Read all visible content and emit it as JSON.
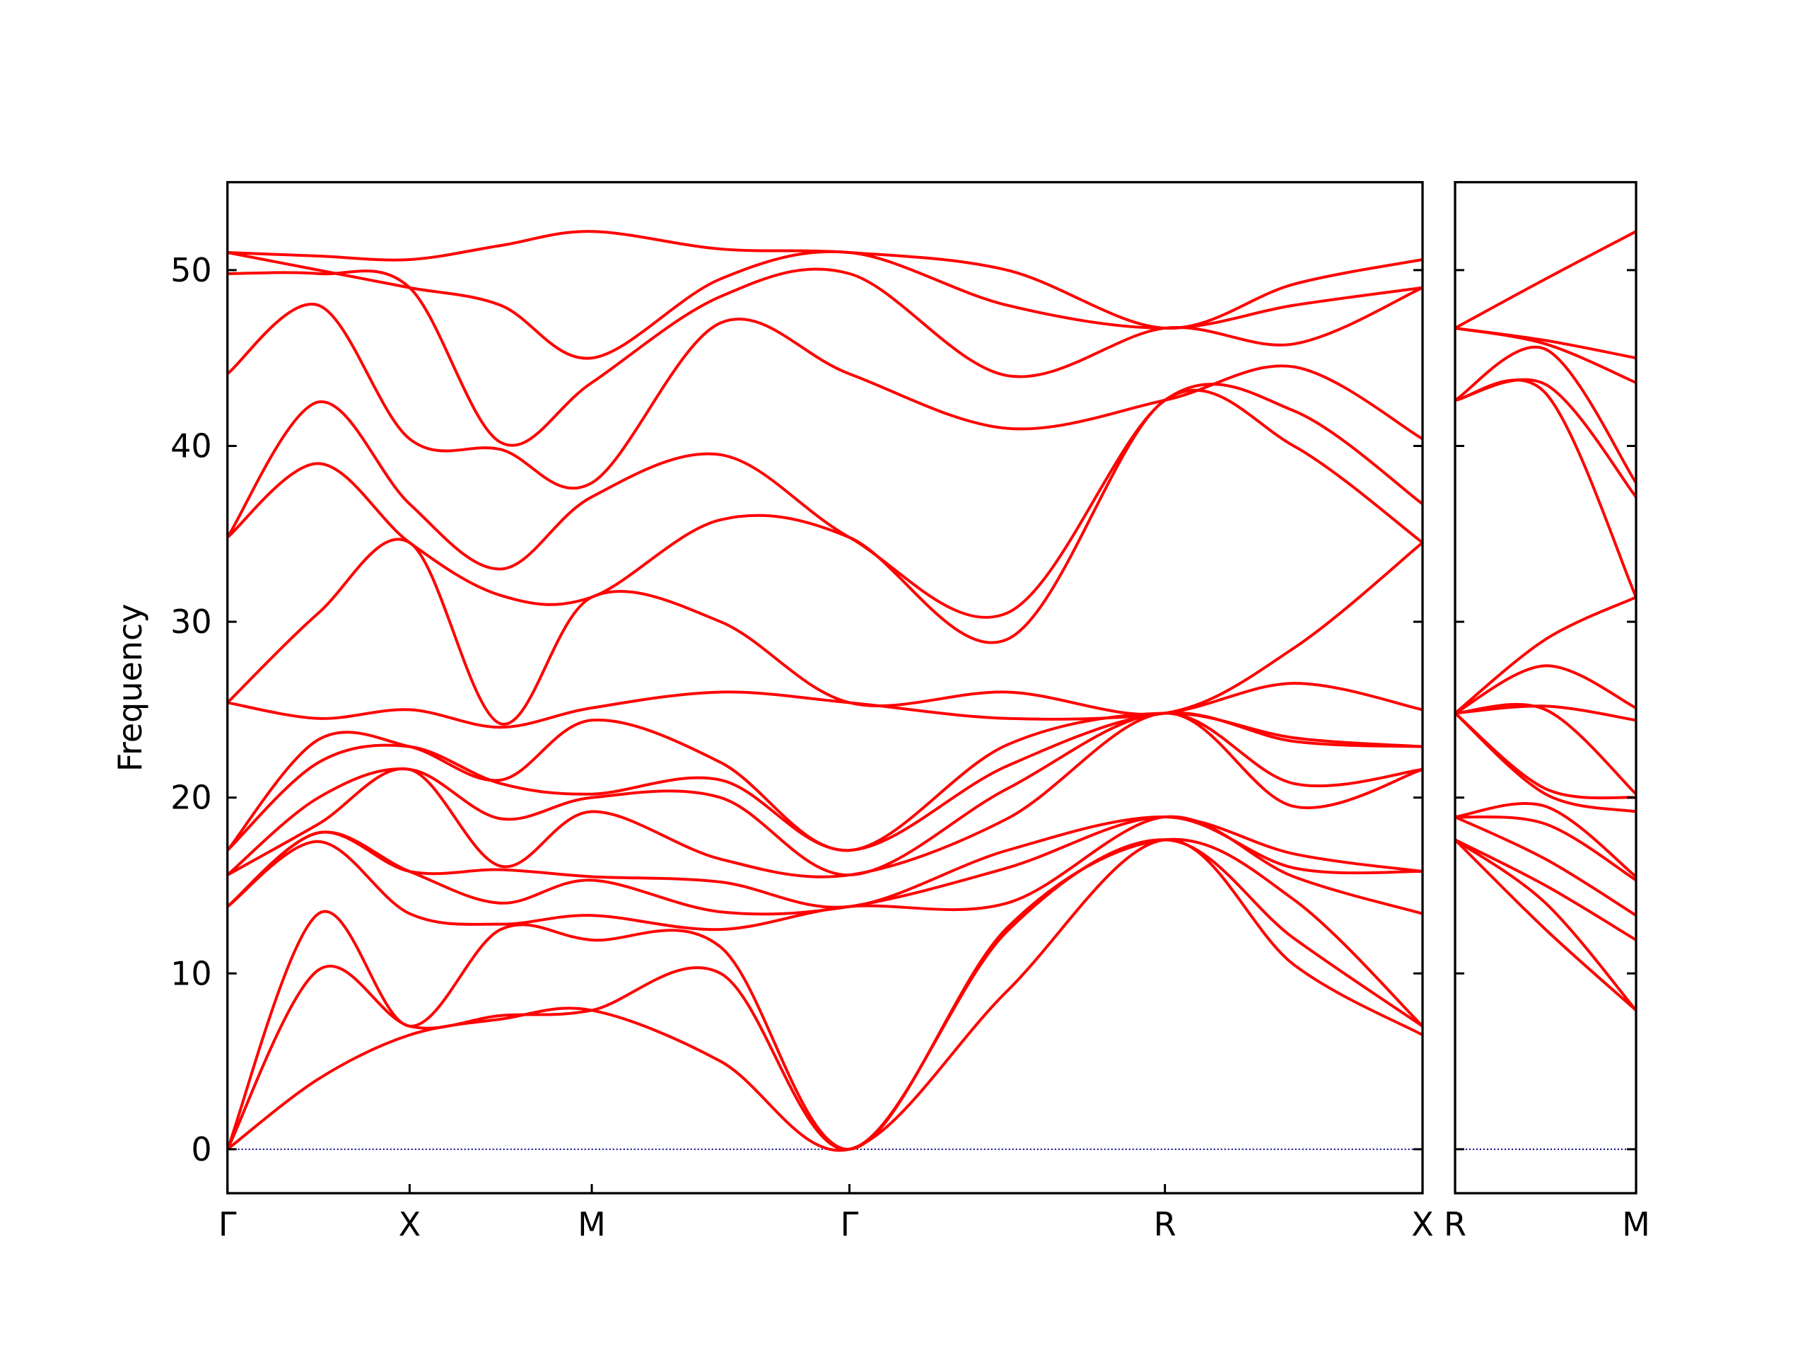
{
  "chart_data": [
    {
      "type": "line",
      "ylabel": "Frequency",
      "color": "#ff0000",
      "x": [
        0,
        0.25,
        0.5,
        0.75,
        1.0,
        1.3536,
        1.7071,
        2.1401,
        2.5731,
        2.9267,
        3.2802
      ],
      "xlim": [
        0,
        3.2802
      ],
      "xticks": [
        {
          "value": 0,
          "label": "Γ"
        },
        {
          "value": 0.5,
          "label": "X"
        },
        {
          "value": 1.0,
          "label": "M"
        },
        {
          "value": 1.7071,
          "label": "Γ"
        },
        {
          "value": 2.5731,
          "label": "R"
        },
        {
          "value": 3.2802,
          "label": "X"
        }
      ],
      "ylim": [
        -2.5,
        55
      ],
      "yticks": [
        0,
        10,
        20,
        30,
        40,
        50
      ],
      "hline": {
        "y": 0,
        "color": "#00008b",
        "style": "dotted"
      },
      "series": [
        {
          "values": [
            0,
            4.0,
            6.5,
            7.4,
            7.9,
            5.0,
            0,
            9.0,
            17.6,
            10.5,
            6.5
          ]
        },
        {
          "values": [
            0,
            10.2,
            7.0,
            7.6,
            7.9,
            10.0,
            0,
            12.4,
            17.6,
            12.0,
            7.0
          ]
        },
        {
          "values": [
            0,
            13.4,
            7.0,
            12.5,
            11.9,
            11.5,
            0,
            12.6,
            17.6,
            14.2,
            7.0
          ]
        },
        {
          "values": [
            13.8,
            17.5,
            13.4,
            12.8,
            13.3,
            12.5,
            13.8,
            14.0,
            18.9,
            15.5,
            13.4
          ]
        },
        {
          "values": [
            13.8,
            18.0,
            15.8,
            14.0,
            15.3,
            13.5,
            13.8,
            16.0,
            18.9,
            16.0,
            15.8
          ]
        },
        {
          "values": [
            13.8,
            18.0,
            15.8,
            15.9,
            15.5,
            15.2,
            13.8,
            17.0,
            18.9,
            16.8,
            15.8
          ]
        },
        {
          "values": [
            15.6,
            18.5,
            21.6,
            16.1,
            19.2,
            16.5,
            15.6,
            18.8,
            24.8,
            19.5,
            21.6
          ]
        },
        {
          "values": [
            15.6,
            20.0,
            21.6,
            18.8,
            20.0,
            20.0,
            15.6,
            20.5,
            24.8,
            20.8,
            21.6
          ]
        },
        {
          "values": [
            17.0,
            22.0,
            22.9,
            20.8,
            20.2,
            21.0,
            17.0,
            21.8,
            24.8,
            23.2,
            22.9
          ]
        },
        {
          "values": [
            17.0,
            23.3,
            22.9,
            21.0,
            24.4,
            22.0,
            17.0,
            23.0,
            24.8,
            23.4,
            22.9
          ]
        },
        {
          "values": [
            25.4,
            24.5,
            25.0,
            24.0,
            25.1,
            26.0,
            25.4,
            24.5,
            24.8,
            26.5,
            25.0
          ]
        },
        {
          "values": [
            25.4,
            30.5,
            34.5,
            24.2,
            31.4,
            30.0,
            25.4,
            26.0,
            24.8,
            28.5,
            34.5
          ]
        },
        {
          "values": [
            34.8,
            39.0,
            34.5,
            31.5,
            31.4,
            35.8,
            34.8,
            29.0,
            42.6,
            40.0,
            34.5
          ]
        },
        {
          "values": [
            34.8,
            42.5,
            36.7,
            33.0,
            37.1,
            39.5,
            34.8,
            30.5,
            42.6,
            42.0,
            36.7
          ]
        },
        {
          "values": [
            44.1,
            48.0,
            40.4,
            39.8,
            37.9,
            47.0,
            44.1,
            41.0,
            42.6,
            44.5,
            40.4
          ]
        },
        {
          "values": [
            49.8,
            49.8,
            49.0,
            40.2,
            43.6,
            48.5,
            49.8,
            44.0,
            46.7,
            45.8,
            49.0
          ]
        },
        {
          "values": [
            51.0,
            50.0,
            49.0,
            48.0,
            45.0,
            49.5,
            51.0,
            48.0,
            46.7,
            48.0,
            49.0
          ]
        },
        {
          "values": [
            51.0,
            50.8,
            50.6,
            51.4,
            52.2,
            51.2,
            51.0,
            50.0,
            46.7,
            49.2,
            50.6
          ]
        }
      ]
    },
    {
      "type": "line",
      "color": "#ff0000",
      "x": [
        0,
        0.25,
        0.5
      ],
      "xlim": [
        0,
        0.5
      ],
      "xticks": [
        {
          "value": 0,
          "label": "R"
        },
        {
          "value": 0.5,
          "label": "M"
        }
      ],
      "ylim": [
        -2.5,
        55
      ],
      "yticks": [
        0,
        10,
        20,
        30,
        40,
        50
      ],
      "hline": {
        "y": 0,
        "color": "#00008b",
        "style": "dotted"
      },
      "series": [
        {
          "values": [
            17.6,
            12.5,
            7.9
          ]
        },
        {
          "values": [
            17.6,
            14.0,
            7.9
          ]
        },
        {
          "values": [
            17.6,
            15.0,
            11.9
          ]
        },
        {
          "values": [
            18.9,
            16.5,
            13.3
          ]
        },
        {
          "values": [
            18.9,
            18.5,
            15.3
          ]
        },
        {
          "values": [
            18.9,
            19.5,
            15.5
          ]
        },
        {
          "values": [
            24.8,
            20.2,
            19.2
          ]
        },
        {
          "values": [
            24.8,
            20.5,
            20.0
          ]
        },
        {
          "values": [
            24.8,
            25.0,
            20.2
          ]
        },
        {
          "values": [
            24.8,
            25.2,
            24.4
          ]
        },
        {
          "values": [
            24.8,
            27.5,
            25.1
          ]
        },
        {
          "values": [
            24.8,
            29.0,
            31.4
          ]
        },
        {
          "values": [
            42.6,
            43.0,
            31.4
          ]
        },
        {
          "values": [
            42.6,
            43.5,
            37.1
          ]
        },
        {
          "values": [
            42.6,
            45.5,
            37.9
          ]
        },
        {
          "values": [
            46.7,
            45.8,
            43.6
          ]
        },
        {
          "values": [
            46.7,
            46.0,
            45.0
          ]
        },
        {
          "values": [
            46.7,
            49.5,
            52.2
          ]
        }
      ]
    }
  ]
}
